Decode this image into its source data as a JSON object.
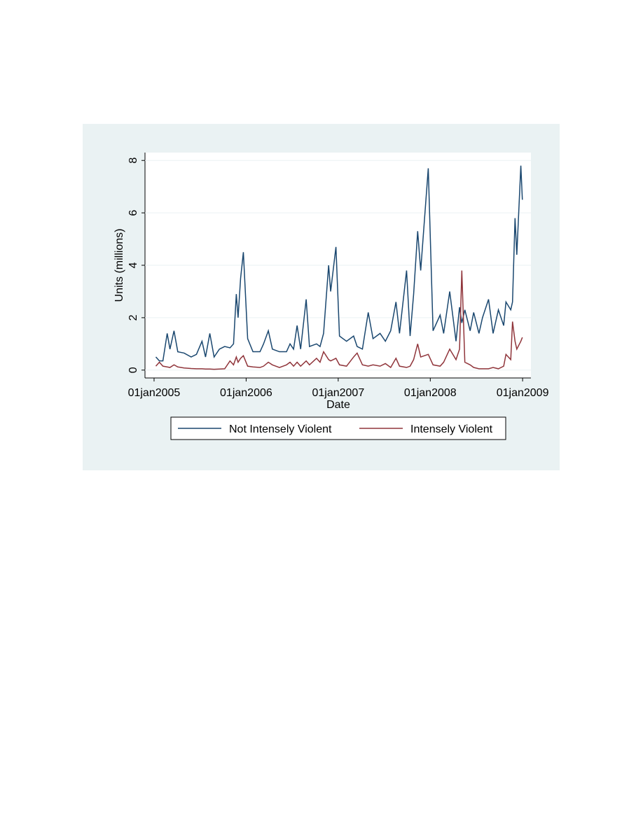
{
  "chart_data": {
    "type": "line",
    "xlabel": "Date",
    "ylabel": "Units (millions)",
    "x": [
      "2005-01-08",
      "2005-01-22",
      "2005-02-05",
      "2005-02-22",
      "2005-03-05",
      "2005-03-21",
      "2005-04-05",
      "2005-04-30",
      "2005-05-28",
      "2005-06-18",
      "2005-07-10",
      "2005-07-24",
      "2005-08-10",
      "2005-08-27",
      "2005-09-17",
      "2005-10-08",
      "2005-10-29",
      "2005-11-12",
      "2005-11-23",
      "2005-11-30",
      "2005-12-10",
      "2005-12-21",
      "2006-01-07",
      "2006-01-28",
      "2006-02-25",
      "2006-03-11",
      "2006-03-30",
      "2006-04-15",
      "2006-05-13",
      "2006-06-10",
      "2006-06-24",
      "2006-07-08",
      "2006-07-22",
      "2006-08-05",
      "2006-08-27",
      "2006-09-09",
      "2006-10-07",
      "2006-10-21",
      "2006-11-04",
      "2006-11-24",
      "2006-12-02",
      "2006-12-23",
      "2007-01-06",
      "2007-02-03",
      "2007-03-03",
      "2007-03-17",
      "2007-04-07",
      "2007-04-30",
      "2007-05-19",
      "2007-06-16",
      "2007-07-07",
      "2007-07-28",
      "2007-08-18",
      "2007-09-01",
      "2007-09-29",
      "2007-10-13",
      "2007-10-27",
      "2007-11-12",
      "2007-11-24",
      "2007-12-24",
      "2008-01-12",
      "2008-02-09",
      "2008-02-23",
      "2008-03-18",
      "2008-04-12",
      "2008-04-26",
      "2008-05-05",
      "2008-05-17",
      "2008-06-07",
      "2008-06-21",
      "2008-07-12",
      "2008-07-26",
      "2008-08-19",
      "2008-09-06",
      "2008-09-27",
      "2008-10-18",
      "2008-10-27",
      "2008-11-15",
      "2008-11-22",
      "2008-12-02",
      "2008-12-09",
      "2008-12-25",
      "2008-12-31"
    ],
    "series": [
      {
        "name": "Not Intensely Violent",
        "color": "#1a476f",
        "values": [
          0.5,
          0.35,
          0.35,
          1.4,
          0.8,
          1.5,
          0.7,
          0.65,
          0.5,
          0.6,
          1.1,
          0.5,
          1.4,
          0.5,
          0.8,
          0.9,
          0.85,
          1.0,
          2.9,
          2.0,
          3.5,
          4.5,
          1.2,
          0.7,
          0.7,
          1.0,
          1.5,
          0.8,
          0.7,
          0.7,
          1.0,
          0.8,
          1.7,
          0.8,
          2.7,
          0.9,
          1.0,
          0.9,
          1.4,
          4.0,
          3.0,
          4.7,
          1.3,
          1.1,
          1.3,
          0.9,
          0.8,
          2.2,
          1.2,
          1.4,
          1.1,
          1.5,
          2.6,
          1.4,
          3.8,
          1.3,
          2.9,
          5.3,
          3.8,
          7.7,
          1.5,
          2.1,
          1.4,
          3.0,
          1.1,
          2.4,
          1.8,
          2.3,
          1.5,
          2.2,
          1.4,
          2.0,
          2.7,
          1.4,
          2.3,
          1.7,
          2.6,
          2.3,
          2.6,
          5.8,
          4.4,
          7.8,
          6.5
        ]
      },
      {
        "name": "Intensely Violent",
        "color": "#90353b",
        "values": [
          0.15,
          0.3,
          0.15,
          0.12,
          0.1,
          0.2,
          0.12,
          0.08,
          0.06,
          0.05,
          0.05,
          0.04,
          0.04,
          0.03,
          0.04,
          0.05,
          0.35,
          0.2,
          0.5,
          0.3,
          0.45,
          0.55,
          0.15,
          0.12,
          0.1,
          0.15,
          0.3,
          0.2,
          0.1,
          0.2,
          0.3,
          0.15,
          0.3,
          0.15,
          0.35,
          0.2,
          0.45,
          0.3,
          0.7,
          0.4,
          0.35,
          0.45,
          0.2,
          0.15,
          0.5,
          0.65,
          0.2,
          0.15,
          0.2,
          0.15,
          0.25,
          0.1,
          0.45,
          0.15,
          0.1,
          0.15,
          0.4,
          1.0,
          0.5,
          0.6,
          0.2,
          0.15,
          0.3,
          0.8,
          0.4,
          0.8,
          3.8,
          0.3,
          0.2,
          0.1,
          0.05,
          0.05,
          0.05,
          0.1,
          0.05,
          0.15,
          0.6,
          0.4,
          1.85,
          1.1,
          0.8,
          1.1,
          1.25
        ]
      }
    ],
    "xlim": [
      "2004-11-26",
      "2009-02-03"
    ],
    "xticks": [
      {
        "value": "2005-01-01",
        "label": "01jan2005"
      },
      {
        "value": "2006-01-01",
        "label": "01jan2006"
      },
      {
        "value": "2007-01-01",
        "label": "01jan2007"
      },
      {
        "value": "2008-01-01",
        "label": "01jan2008"
      },
      {
        "value": "2009-01-01",
        "label": "01jan2009"
      }
    ],
    "ylim": [
      -0.3,
      8.3
    ],
    "yticks": [
      0,
      2,
      4,
      6,
      8
    ],
    "grid": true,
    "legend": "bottom"
  }
}
